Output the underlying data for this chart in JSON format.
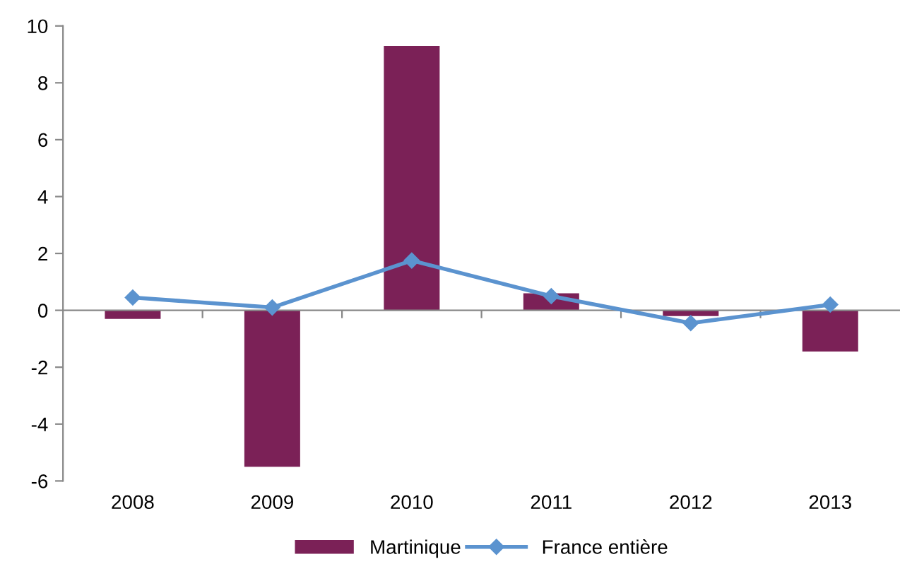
{
  "chart_data": {
    "type": "bar",
    "categories": [
      "2008",
      "2009",
      "2010",
      "2011",
      "2012",
      "2013"
    ],
    "series": [
      {
        "name": "Martinique",
        "color": "#7b2157",
        "values": [
          -0.3,
          -5.5,
          9.3,
          0.6,
          -0.2,
          -1.45
        ]
      },
      {
        "name": "France entière",
        "type": "line",
        "color": "#5b93cf",
        "marker": "diamond",
        "values": [
          0.45,
          0.1,
          1.75,
          0.5,
          -0.45,
          0.2
        ]
      }
    ],
    "ylim": [
      -6,
      10
    ],
    "yticks": [
      -6,
      -4,
      -2,
      0,
      2,
      4,
      6,
      8,
      10
    ],
    "legend": "bottom"
  }
}
